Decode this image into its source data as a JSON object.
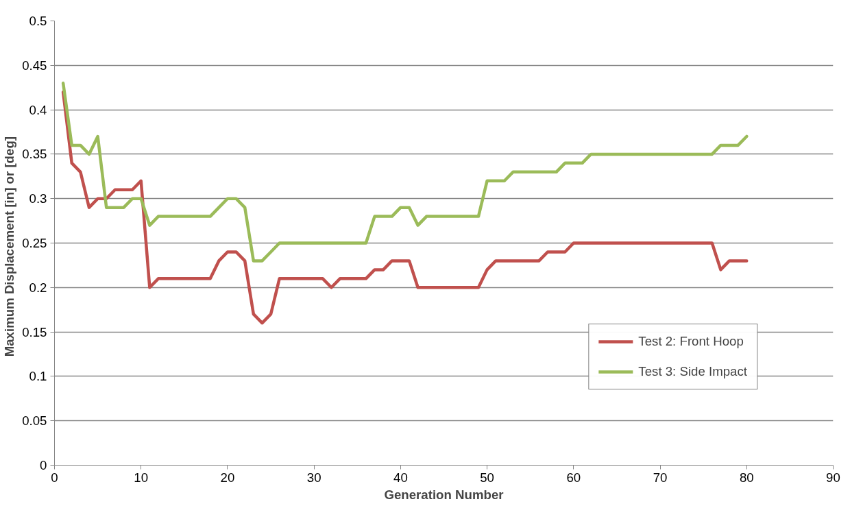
{
  "chart_data": {
    "type": "line",
    "xlabel": "Generation Number",
    "ylabel": "Maximum Displacement   [in] or [deg]",
    "x": [
      1,
      2,
      3,
      4,
      5,
      6,
      7,
      8,
      9,
      10,
      11,
      12,
      13,
      14,
      15,
      16,
      17,
      18,
      19,
      20,
      21,
      22,
      23,
      24,
      25,
      26,
      27,
      28,
      29,
      30,
      31,
      32,
      33,
      34,
      35,
      36,
      37,
      38,
      39,
      40,
      41,
      42,
      43,
      44,
      45,
      46,
      47,
      48,
      49,
      50,
      51,
      52,
      53,
      54,
      55,
      56,
      57,
      58,
      59,
      60,
      61,
      62,
      63,
      64,
      65,
      66,
      67,
      68,
      69,
      70,
      71,
      72,
      73,
      74,
      75,
      76,
      77,
      78,
      79,
      80
    ],
    "series": [
      {
        "name": "Test 2: Front Hoop",
        "color": "#c0504d",
        "values": [
          0.42,
          0.34,
          0.33,
          0.29,
          0.3,
          0.3,
          0.31,
          0.31,
          0.31,
          0.32,
          0.2,
          0.21,
          0.21,
          0.21,
          0.21,
          0.21,
          0.21,
          0.21,
          0.23,
          0.24,
          0.24,
          0.23,
          0.17,
          0.16,
          0.17,
          0.21,
          0.21,
          0.21,
          0.21,
          0.21,
          0.21,
          0.2,
          0.21,
          0.21,
          0.21,
          0.21,
          0.22,
          0.22,
          0.23,
          0.23,
          0.23,
          0.2,
          0.2,
          0.2,
          0.2,
          0.2,
          0.2,
          0.2,
          0.2,
          0.22,
          0.23,
          0.23,
          0.23,
          0.23,
          0.23,
          0.23,
          0.24,
          0.24,
          0.24,
          0.25,
          0.25,
          0.25,
          0.25,
          0.25,
          0.25,
          0.25,
          0.25,
          0.25,
          0.25,
          0.25,
          0.25,
          0.25,
          0.25,
          0.25,
          0.25,
          0.25,
          0.22,
          0.23,
          0.23,
          0.23
        ]
      },
      {
        "name": "Test 3: Side Impact",
        "color": "#9bbb59",
        "values": [
          0.43,
          0.36,
          0.36,
          0.35,
          0.37,
          0.29,
          0.29,
          0.29,
          0.3,
          0.3,
          0.27,
          0.28,
          0.28,
          0.28,
          0.28,
          0.28,
          0.28,
          0.28,
          0.29,
          0.3,
          0.3,
          0.29,
          0.23,
          0.23,
          0.24,
          0.25,
          0.25,
          0.25,
          0.25,
          0.25,
          0.25,
          0.25,
          0.25,
          0.25,
          0.25,
          0.25,
          0.28,
          0.28,
          0.28,
          0.29,
          0.29,
          0.27,
          0.28,
          0.28,
          0.28,
          0.28,
          0.28,
          0.28,
          0.28,
          0.32,
          0.32,
          0.32,
          0.33,
          0.33,
          0.33,
          0.33,
          0.33,
          0.33,
          0.34,
          0.34,
          0.34,
          0.35,
          0.35,
          0.35,
          0.35,
          0.35,
          0.35,
          0.35,
          0.35,
          0.35,
          0.35,
          0.35,
          0.35,
          0.35,
          0.35,
          0.35,
          0.36,
          0.36,
          0.36,
          0.37
        ]
      }
    ],
    "xlim": [
      0,
      90
    ],
    "xticks": [
      0,
      10,
      20,
      30,
      40,
      50,
      60,
      70,
      80,
      90
    ],
    "ylim": [
      0,
      0.5
    ],
    "yticks": [
      0,
      0.05,
      0.1,
      0.15,
      0.2,
      0.25,
      0.3,
      0.35,
      0.4,
      0.45,
      0.5
    ],
    "grid": "y",
    "legend": "bottom right",
    "marker": "none",
    "line_style": "solid"
  }
}
